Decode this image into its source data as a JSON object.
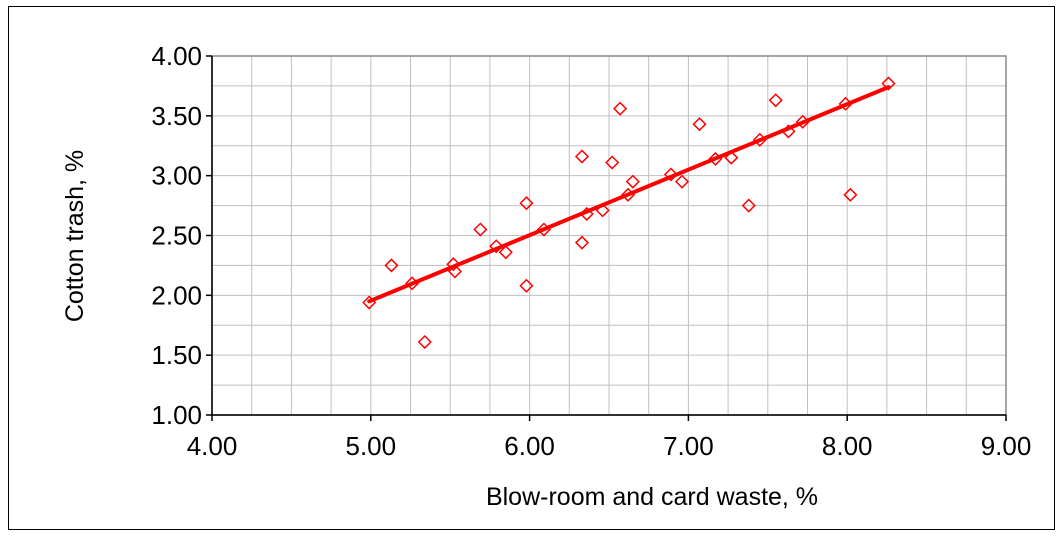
{
  "chart_data": {
    "type": "scatter",
    "xlabel": "Blow-room and card waste, %",
    "ylabel": "Cotton trash, %",
    "xlim": [
      4.0,
      9.0
    ],
    "ylim": [
      1.0,
      4.0
    ],
    "x_ticks": [
      "4.00",
      "5.00",
      "6.00",
      "7.00",
      "8.00",
      "9.00"
    ],
    "y_ticks": [
      "1.00",
      "1.50",
      "2.00",
      "2.50",
      "3.00",
      "3.50",
      "4.00"
    ],
    "grid": true,
    "legend": "none",
    "colors": {
      "points": "#ff0000",
      "trendline": "#ff0000",
      "grid": "#c0c0c0"
    },
    "series": [
      {
        "marker": "diamond-open",
        "points": [
          [
            4.99,
            1.94
          ],
          [
            5.13,
            2.25
          ],
          [
            5.26,
            2.1
          ],
          [
            5.34,
            1.61
          ],
          [
            5.52,
            2.26
          ],
          [
            5.53,
            2.2
          ],
          [
            5.69,
            2.55
          ],
          [
            5.79,
            2.41
          ],
          [
            5.85,
            2.36
          ],
          [
            5.98,
            2.77
          ],
          [
            5.98,
            2.08
          ],
          [
            6.09,
            2.55
          ],
          [
            6.33,
            3.16
          ],
          [
            6.33,
            2.44
          ],
          [
            6.36,
            2.68
          ],
          [
            6.46,
            2.71
          ],
          [
            6.52,
            3.11
          ],
          [
            6.57,
            3.56
          ],
          [
            6.62,
            2.84
          ],
          [
            6.65,
            2.95
          ],
          [
            6.89,
            3.01
          ],
          [
            6.96,
            2.95
          ],
          [
            7.07,
            3.43
          ],
          [
            7.17,
            3.14
          ],
          [
            7.27,
            3.15
          ],
          [
            7.38,
            2.75
          ],
          [
            7.45,
            3.3
          ],
          [
            7.55,
            3.63
          ],
          [
            7.63,
            3.37
          ],
          [
            7.72,
            3.45
          ],
          [
            7.99,
            3.6
          ],
          [
            8.02,
            2.84
          ],
          [
            8.26,
            3.77
          ]
        ]
      }
    ],
    "trendline": {
      "x": [
        4.99,
        8.26
      ],
      "y": [
        1.95,
        3.74
      ]
    }
  }
}
